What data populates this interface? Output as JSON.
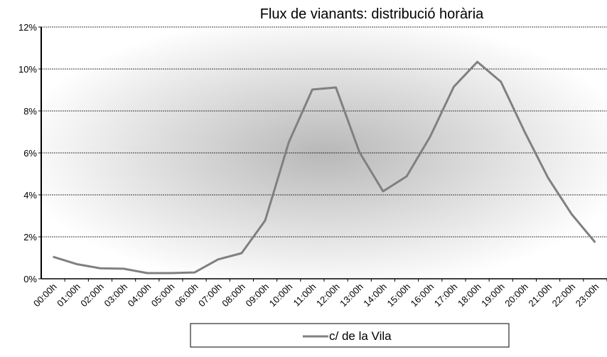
{
  "chart_data": {
    "type": "line",
    "title": "Flux de vianants: distribució horària",
    "categories": [
      "00:00h",
      "01:00h",
      "02:00h",
      "03:00h",
      "04:00h",
      "05:00h",
      "06:00h",
      "07:00h",
      "08:00h",
      "09:00h",
      "10:00h",
      "11:00h",
      "12:00h",
      "13:00h",
      "14:00h",
      "15:00h",
      "16:00h",
      "17:00h",
      "18:00h",
      "19:00h",
      "20:00h",
      "21:00h",
      "22:00h",
      "23:00h"
    ],
    "series": [
      {
        "name": "c/ de la Vila",
        "color": "#808080",
        "values": [
          1.05,
          0.7,
          0.5,
          0.48,
          0.27,
          0.27,
          0.3,
          0.92,
          1.22,
          2.78,
          6.5,
          9.02,
          9.12,
          6.03,
          4.17,
          4.88,
          6.78,
          9.15,
          10.34,
          9.39,
          7.02,
          4.81,
          3.08,
          1.73
        ]
      }
    ],
    "ylim": [
      0,
      12
    ],
    "yticks": [
      {
        "value": 0,
        "label": "0%"
      },
      {
        "value": 2,
        "label": "2%"
      },
      {
        "value": 4,
        "label": "4%"
      },
      {
        "value": 6,
        "label": "6%"
      },
      {
        "value": 8,
        "label": "8%"
      },
      {
        "value": 10,
        "label": "10%"
      },
      {
        "value": 12,
        "label": "12%"
      }
    ],
    "grid": true,
    "legend": "bottom"
  }
}
